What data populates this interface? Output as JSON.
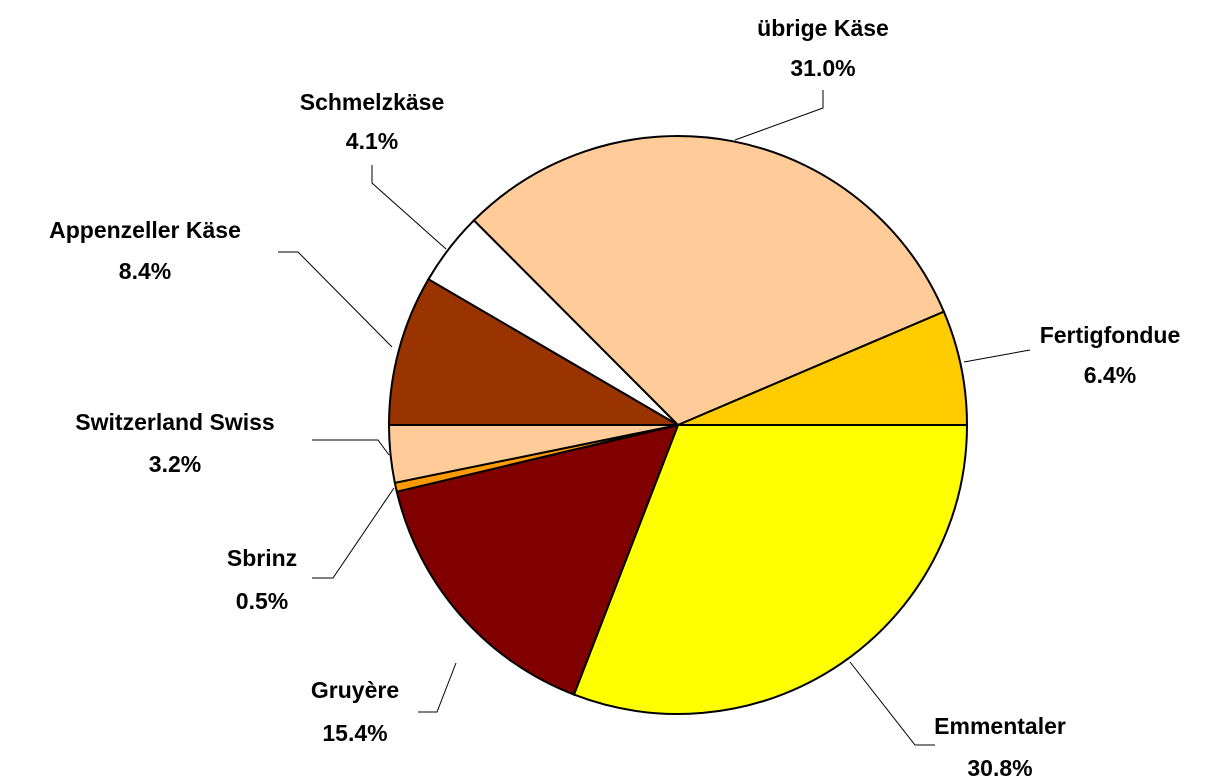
{
  "chart_data": {
    "type": "pie",
    "categories": [
      "Emmentaler",
      "Gruyère",
      "Sbrinz",
      "Switzerland Swiss",
      "Appenzeller Käse",
      "Schmelzkäse",
      "übrige Käse",
      "Fertigfondue"
    ],
    "values": [
      30.8,
      15.4,
      0.5,
      3.2,
      8.4,
      4.1,
      31.0,
      6.4
    ],
    "value_labels": [
      "30.8%",
      "15.4%",
      "0.5%",
      "3.2%",
      "8.4%",
      "4.1%",
      "31.0%",
      "6.4%"
    ],
    "colors": [
      "#ffff00",
      "#800000",
      "#ff9900",
      "#ffcc99",
      "#993300",
      "#ffffff",
      "#ffcc99",
      "#ffcc00"
    ]
  }
}
